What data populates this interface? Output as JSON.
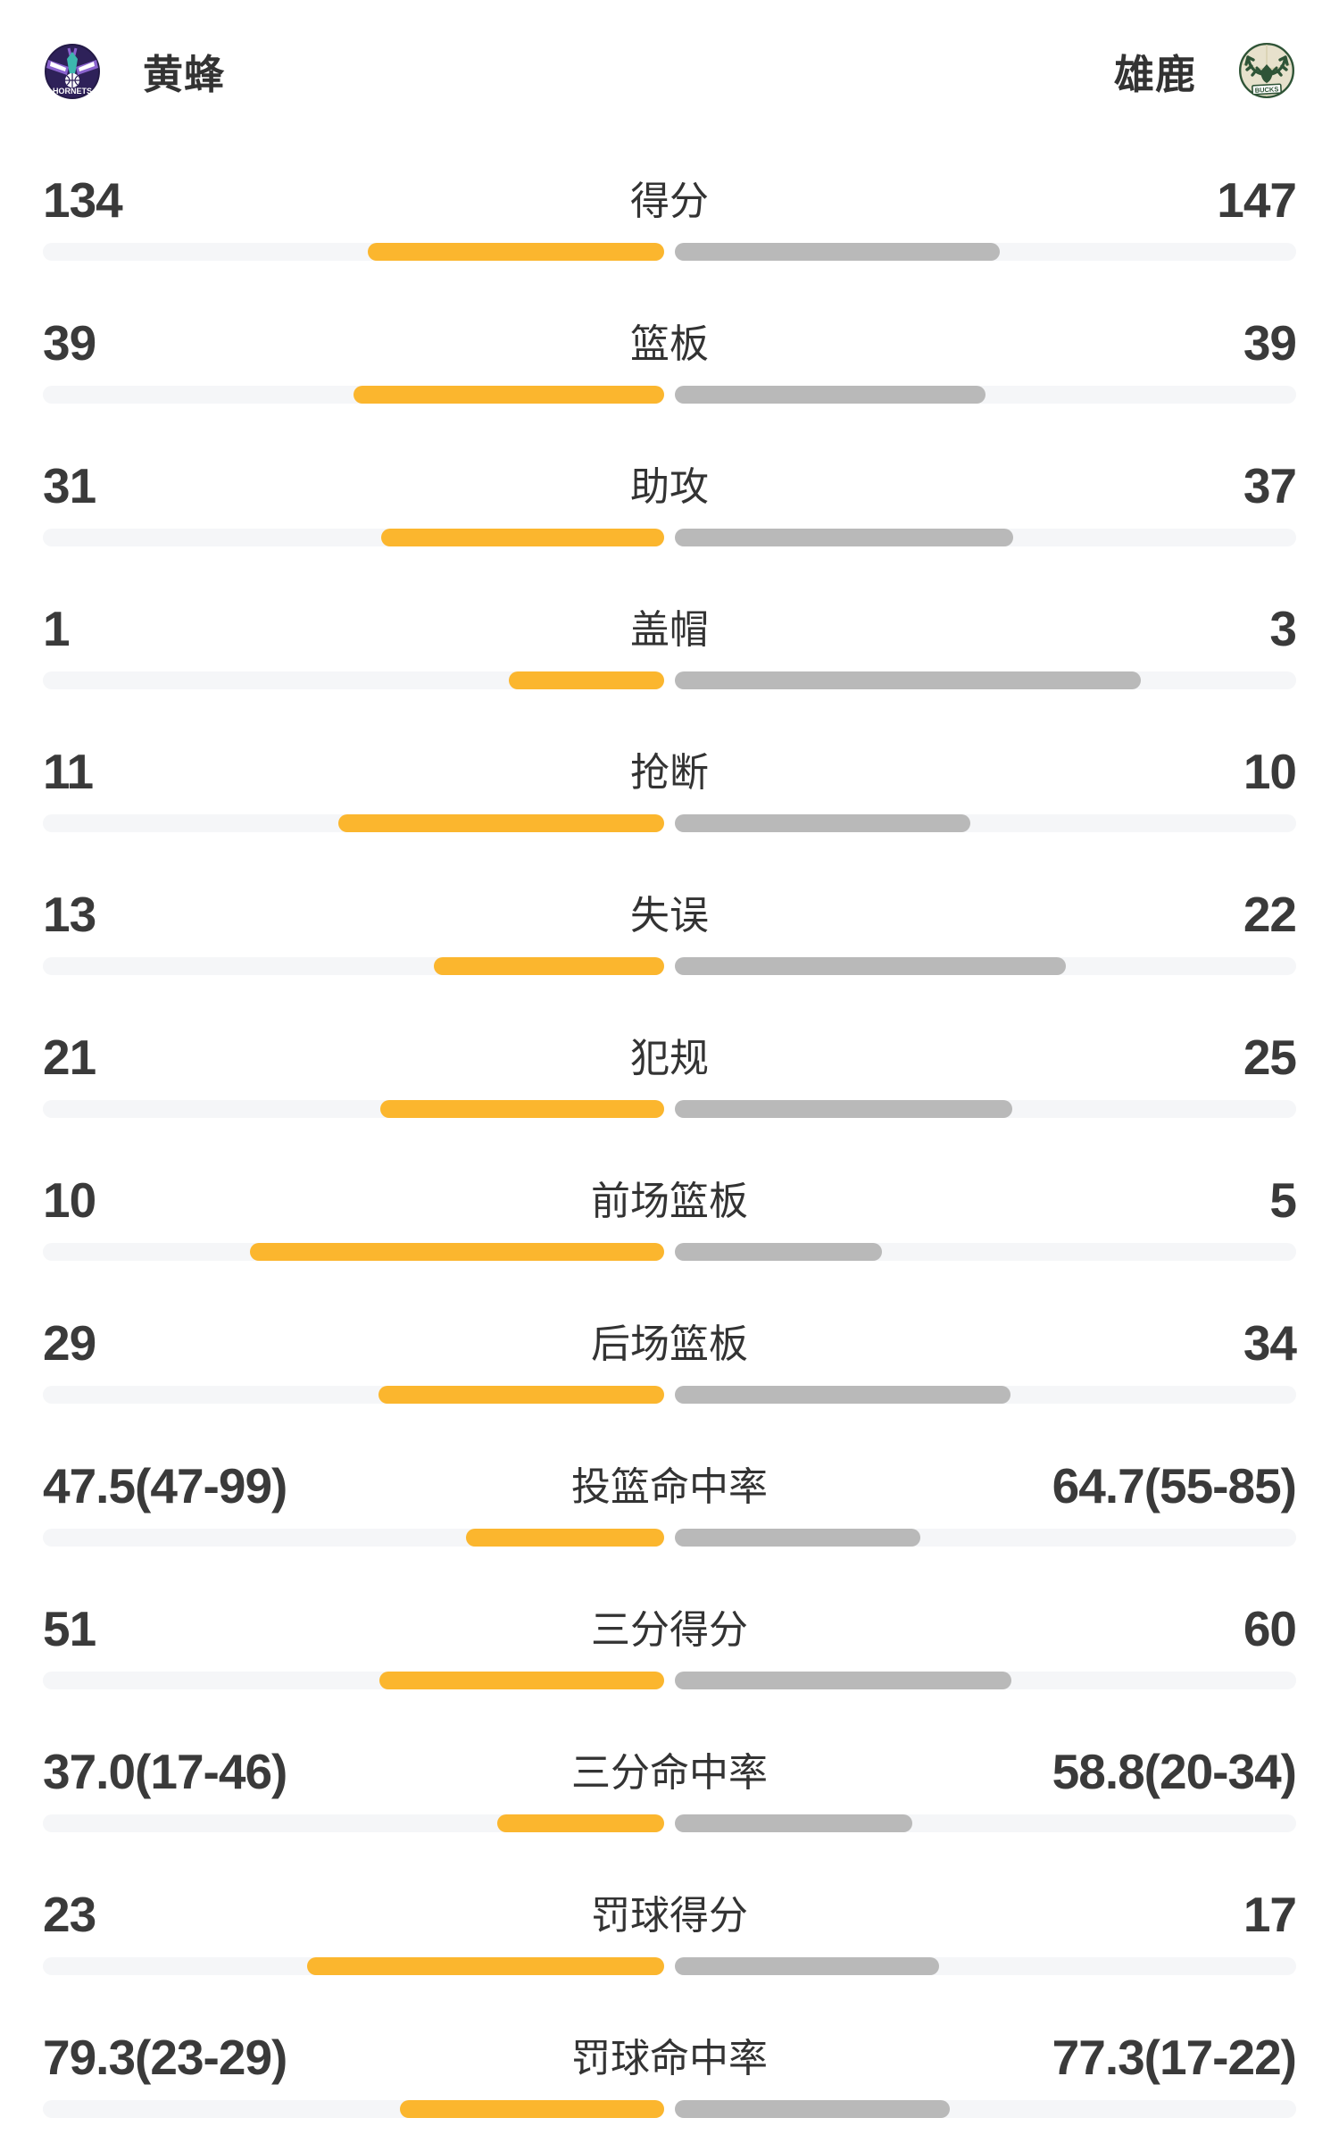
{
  "header": {
    "left_team": {
      "name": "黄蜂",
      "logo": "hornets-logo",
      "logo_text": "HORNETS"
    },
    "right_team": {
      "name": "雄鹿",
      "logo": "bucks-logo",
      "logo_text": "BUCKS"
    }
  },
  "colors": {
    "home_bar": "#FBB62E",
    "away_bar": "#B9B9B9",
    "bar_track": "#F5F6F8",
    "number_text": "#3A3A3A",
    "label_text": "#333333",
    "background": "#FFFFFF",
    "hornets_purple": "#2E2159",
    "hornets_teal": "#3CB8AE",
    "hornets_wing": "#8A63CE",
    "bucks_green": "#2F5437",
    "bucks_cream": "#E7E1CC"
  },
  "chart_data": {
    "type": "bar",
    "orientation": "horizontal-paired-from-center",
    "legend_position": "top",
    "grid": false,
    "teams": [
      "黄蜂",
      "雄鹿"
    ],
    "categories": [
      "得分",
      "篮板",
      "助攻",
      "盖帽",
      "抢断",
      "失误",
      "犯规",
      "前场篮板",
      "后场篮板",
      "投篮命中率",
      "三分得分",
      "三分命中率",
      "罚球得分",
      "罚球命中率"
    ],
    "series": [
      {
        "name": "黄蜂",
        "values": [
          134,
          39,
          31,
          1,
          11,
          13,
          21,
          10,
          29,
          47.5,
          51,
          37.0,
          23,
          79.3
        ]
      },
      {
        "name": "雄鹿",
        "values": [
          147,
          39,
          37,
          3,
          10,
          22,
          25,
          5,
          34,
          64.7,
          60,
          58.8,
          17,
          77.3
        ]
      }
    ],
    "rows": [
      {
        "label": "得分",
        "left": "134",
        "right": "147",
        "left_fill_pct": 47.7,
        "right_fill_pct": 52.3
      },
      {
        "label": "篮板",
        "left": "39",
        "right": "39",
        "left_fill_pct": 50.0,
        "right_fill_pct": 50.0
      },
      {
        "label": "助攻",
        "left": "31",
        "right": "37",
        "left_fill_pct": 45.6,
        "right_fill_pct": 54.4
      },
      {
        "label": "盖帽",
        "left": "1",
        "right": "3",
        "left_fill_pct": 25.0,
        "right_fill_pct": 75.0
      },
      {
        "label": "抢断",
        "left": "11",
        "right": "10",
        "left_fill_pct": 52.4,
        "right_fill_pct": 47.6
      },
      {
        "label": "失误",
        "left": "13",
        "right": "22",
        "left_fill_pct": 37.1,
        "right_fill_pct": 62.9
      },
      {
        "label": "犯规",
        "left": "21",
        "right": "25",
        "left_fill_pct": 45.7,
        "right_fill_pct": 54.3
      },
      {
        "label": "前场篮板",
        "left": "10",
        "right": "5",
        "left_fill_pct": 66.7,
        "right_fill_pct": 33.3
      },
      {
        "label": "后场篮板",
        "left": "29",
        "right": "34",
        "left_fill_pct": 46.0,
        "right_fill_pct": 54.0
      },
      {
        "label": "投篮命中率",
        "left": "47.5(47-99)",
        "right": "64.7(55-85)",
        "left_fill_pct": 31.9,
        "right_fill_pct": 39.5
      },
      {
        "label": "三分得分",
        "left": "51",
        "right": "60",
        "left_fill_pct": 45.9,
        "right_fill_pct": 54.1
      },
      {
        "label": "三分命中率",
        "left": "37.0(17-46)",
        "right": "58.8(20-34)",
        "left_fill_pct": 26.8,
        "right_fill_pct": 38.2
      },
      {
        "label": "罚球得分",
        "left": "23",
        "right": "17",
        "left_fill_pct": 57.5,
        "right_fill_pct": 42.5
      },
      {
        "label": "罚球命中率",
        "left": "79.3(23-29)",
        "right": "77.3(17-22)",
        "left_fill_pct": 42.6,
        "right_fill_pct": 44.2
      }
    ]
  }
}
